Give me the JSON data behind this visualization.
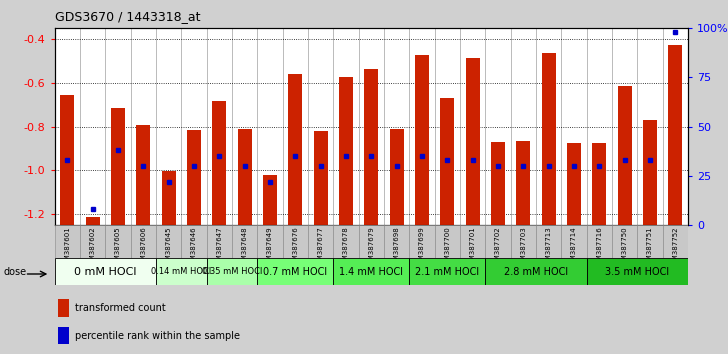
{
  "title": "GDS3670 / 1443318_at",
  "samples": [
    "GSM387601",
    "GSM387602",
    "GSM387605",
    "GSM387606",
    "GSM387645",
    "GSM387646",
    "GSM387647",
    "GSM387648",
    "GSM387649",
    "GSM387676",
    "GSM387677",
    "GSM387678",
    "GSM387679",
    "GSM387698",
    "GSM387699",
    "GSM387700",
    "GSM387701",
    "GSM387702",
    "GSM387703",
    "GSM387713",
    "GSM387714",
    "GSM387716",
    "GSM387750",
    "GSM387751",
    "GSM387752"
  ],
  "transformed_counts": [
    -0.655,
    -1.215,
    -0.715,
    -0.795,
    -1.005,
    -0.815,
    -0.685,
    -0.81,
    -1.02,
    -0.56,
    -0.82,
    -0.575,
    -0.535,
    -0.81,
    -0.47,
    -0.67,
    -0.485,
    -0.87,
    -0.865,
    -0.465,
    -0.875,
    -0.875,
    -0.615,
    -0.77,
    -0.425
  ],
  "percentile_ranks": [
    33,
    8,
    38,
    30,
    22,
    30,
    35,
    30,
    22,
    35,
    30,
    35,
    35,
    30,
    35,
    33,
    33,
    30,
    30,
    30,
    30,
    30,
    33,
    33,
    98
  ],
  "dose_groups": [
    {
      "label": "0 mM HOCl",
      "start": 0,
      "end": 4,
      "color": "#f0fff0",
      "fontsize": 8
    },
    {
      "label": "0.14 mM HOCl",
      "start": 4,
      "end": 6,
      "color": "#ccffcc",
      "fontsize": 6
    },
    {
      "label": "0.35 mM HOCl",
      "start": 6,
      "end": 8,
      "color": "#aaffaa",
      "fontsize": 6
    },
    {
      "label": "0.7 mM HOCl",
      "start": 8,
      "end": 11,
      "color": "#77ff77",
      "fontsize": 7
    },
    {
      "label": "1.4 mM HOCl",
      "start": 11,
      "end": 14,
      "color": "#55ee55",
      "fontsize": 7
    },
    {
      "label": "2.1 mM HOCl",
      "start": 14,
      "end": 17,
      "color": "#44dd44",
      "fontsize": 7
    },
    {
      "label": "2.8 mM HOCl",
      "start": 17,
      "end": 21,
      "color": "#33cc33",
      "fontsize": 7
    },
    {
      "label": "3.5 mM HOCl",
      "start": 21,
      "end": 25,
      "color": "#22bb22",
      "fontsize": 7
    }
  ],
  "ylim_left": [
    -1.25,
    -0.35
  ],
  "ylim_right": [
    0,
    100
  ],
  "bar_bottom": -1.25,
  "bar_color": "#cc2200",
  "percentile_color": "#0000cc",
  "bar_width": 0.55,
  "background_color": "#d0d0d0",
  "plot_bg_color": "#ffffff",
  "yticks_left": [
    -1.2,
    -1.0,
    -0.8,
    -0.6,
    -0.4
  ],
  "yticks_right": [
    0,
    25,
    50,
    75,
    100
  ],
  "ytick_labels_right": [
    "0",
    "25",
    "50",
    "75",
    "100%"
  ],
  "cell_bg_color": "#c8c8c8"
}
